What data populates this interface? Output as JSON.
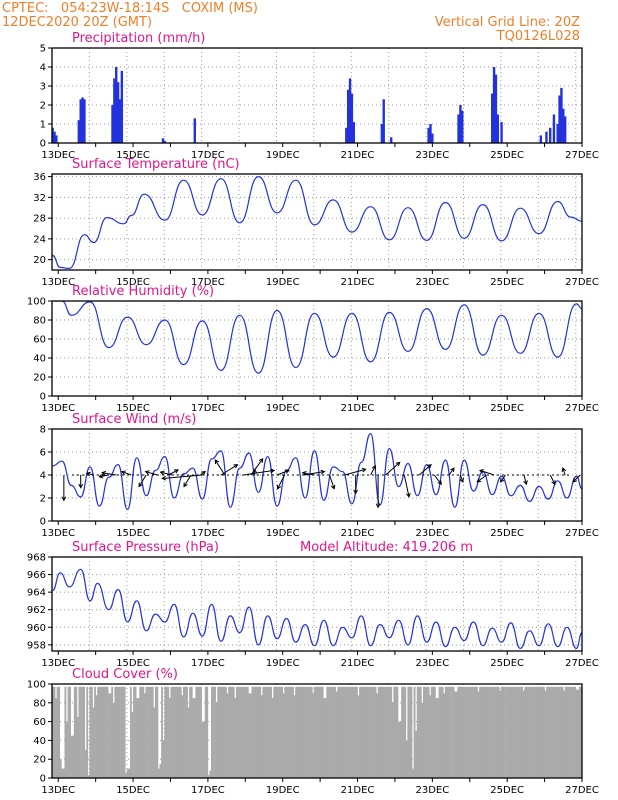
{
  "header": {
    "line1": "CPTEC:   054:23W-18:14S   COXIM (MS)",
    "line2": "12DEC2020 20Z (GMT)",
    "right1": "Vertical Grid Line: 20Z",
    "right2": "TQ0126L028"
  },
  "colors": {
    "header": "#ef7f2a",
    "title": "#e0168c",
    "line": "#2233dd",
    "bar": "#2233dd",
    "cloud": "#aaaaaa",
    "grid": "#9a9a9a"
  },
  "x_tick_labels": [
    "13DEC",
    "15DEC",
    "17DEC",
    "19DEC",
    "21DEC",
    "23DEC",
    "25DEC",
    "27DEC"
  ],
  "chart_data": [
    {
      "id": "precip",
      "type": "bar",
      "title": "Precipitation (mm/h)",
      "ylim": [
        0,
        5
      ],
      "yticks": [
        "0",
        "1",
        "2",
        "3",
        "4",
        "5"
      ],
      "x_range_days": [
        12.833,
        27.0
      ],
      "bars": [
        [
          12.85,
          0.8
        ],
        [
          12.9,
          0.6
        ],
        [
          12.95,
          0.4
        ],
        [
          13.55,
          1.2
        ],
        [
          13.6,
          2.3
        ],
        [
          13.65,
          2.4
        ],
        [
          13.7,
          2.3
        ],
        [
          14.45,
          2.0
        ],
        [
          14.5,
          3.4
        ],
        [
          14.55,
          4.0
        ],
        [
          14.6,
          3.2
        ],
        [
          14.65,
          2.3
        ],
        [
          14.7,
          3.8
        ],
        [
          15.8,
          0.25
        ],
        [
          15.85,
          0.1
        ],
        [
          16.65,
          1.3
        ],
        [
          20.7,
          0.8
        ],
        [
          20.75,
          2.8
        ],
        [
          20.8,
          3.4
        ],
        [
          20.85,
          2.6
        ],
        [
          20.9,
          1.1
        ],
        [
          21.65,
          1.0
        ],
        [
          21.7,
          2.3
        ],
        [
          21.9,
          0.3
        ],
        [
          22.9,
          0.8
        ],
        [
          22.95,
          1.0
        ],
        [
          23.0,
          0.5
        ],
        [
          23.7,
          1.5
        ],
        [
          23.75,
          2.0
        ],
        [
          23.8,
          1.7
        ],
        [
          24.6,
          2.6
        ],
        [
          24.65,
          4.0
        ],
        [
          24.7,
          3.6
        ],
        [
          24.75,
          1.5
        ],
        [
          24.85,
          1.1
        ],
        [
          25.9,
          0.4
        ],
        [
          26.05,
          0.6
        ],
        [
          26.15,
          0.8
        ],
        [
          26.25,
          1.5
        ],
        [
          26.35,
          1.0
        ],
        [
          26.4,
          2.5
        ],
        [
          26.45,
          2.9
        ],
        [
          26.5,
          1.8
        ],
        [
          26.55,
          1.4
        ]
      ]
    },
    {
      "id": "temp",
      "type": "line",
      "title": "Surface Temperature (nC)",
      "ylim": [
        18,
        36.5
      ],
      "yticks": [
        "20",
        "24",
        "28",
        "32",
        "36"
      ],
      "x": [
        12.85,
        13.05,
        13.3,
        13.7,
        13.95,
        14.3,
        14.75,
        14.95,
        15.3,
        15.85,
        16.35,
        16.85,
        17.35,
        17.85,
        18.35,
        18.85,
        19.35,
        19.85,
        20.35,
        20.85,
        21.35,
        21.85,
        22.35,
        22.85,
        23.35,
        23.85,
        24.35,
        24.85,
        25.35,
        25.85,
        26.35,
        26.7,
        27.0
      ],
      "y": [
        20.8,
        18.5,
        18.3,
        24.8,
        23.3,
        28.1,
        26.9,
        28.5,
        32.6,
        27.6,
        35.3,
        28.6,
        35.6,
        27.1,
        36.0,
        29.0,
        35.3,
        26.7,
        31.5,
        25.3,
        30.2,
        23.8,
        30.0,
        23.7,
        31.0,
        24.1,
        30.6,
        23.6,
        29.9,
        25.0,
        31.2,
        28.2,
        27.4
      ]
    },
    {
      "id": "rh",
      "type": "line",
      "title": "Relative Humidity (%)",
      "ylim": [
        0,
        100
      ],
      "yticks": [
        "0",
        "20",
        "40",
        "60",
        "80",
        "100"
      ],
      "x": [
        12.85,
        13.1,
        13.35,
        13.85,
        14.35,
        14.85,
        15.35,
        15.85,
        16.35,
        16.85,
        17.35,
        17.85,
        18.35,
        18.85,
        19.35,
        19.85,
        20.35,
        20.85,
        21.35,
        21.85,
        22.35,
        22.85,
        23.35,
        23.85,
        24.35,
        24.85,
        25.35,
        25.85,
        26.35,
        26.85,
        27.0
      ],
      "y": [
        100,
        100,
        85,
        99,
        51,
        83,
        54,
        80,
        33,
        79,
        27,
        85,
        24,
        90,
        30,
        87,
        41,
        87,
        36,
        88,
        47,
        92,
        49,
        96,
        43,
        85,
        45,
        87,
        41,
        97,
        92
      ]
    },
    {
      "id": "wind",
      "type": "line",
      "title": "Surface Wind (m/s)",
      "ylim": [
        0,
        8
      ],
      "yticks": [
        "0",
        "2",
        "4",
        "6",
        "8"
      ],
      "x": [
        12.85,
        13.1,
        13.35,
        13.6,
        13.85,
        14.1,
        14.35,
        14.6,
        14.85,
        15.1,
        15.35,
        15.6,
        15.85,
        16.1,
        16.35,
        16.6,
        16.85,
        17.1,
        17.35,
        17.6,
        17.85,
        18.1,
        18.35,
        18.6,
        18.85,
        19.1,
        19.35,
        19.6,
        19.85,
        20.1,
        20.35,
        20.6,
        20.85,
        21.1,
        21.35,
        21.6,
        21.85,
        22.1,
        22.35,
        22.6,
        22.85,
        23.1,
        23.35,
        23.6,
        23.85,
        24.1,
        24.35,
        24.6,
        24.85,
        25.1,
        25.35,
        25.6,
        25.85,
        26.1,
        26.35,
        26.6,
        26.85,
        27.0
      ],
      "y": [
        4.8,
        5.2,
        3.1,
        2.1,
        4.7,
        1.3,
        3.8,
        4.9,
        1.0,
        5.5,
        2.2,
        4.4,
        5.6,
        2.0,
        4.1,
        4.6,
        1.9,
        5.4,
        6.1,
        1.2,
        4.6,
        5.9,
        2.5,
        5.6,
        1.3,
        4.4,
        5.5,
        2.0,
        6.1,
        1.8,
        4.7,
        4.3,
        1.5,
        5.1,
        7.6,
        1.4,
        6.3,
        3.0,
        5.0,
        2.2,
        4.9,
        2.3,
        5.3,
        1.2,
        5.3,
        2.6,
        4.3,
        2.3,
        3.9,
        2.2,
        3.1,
        1.7,
        3.0,
        1.9,
        3.5,
        2.0,
        3.9,
        2.8
      ],
      "vector_baseline": 4,
      "vectors": [
        [
          13.15,
          0,
          -2.2
        ],
        [
          13.6,
          0,
          -1.1
        ],
        [
          13.95,
          -0.3,
          0.15
        ],
        [
          14.35,
          -0.4,
          -0.15
        ],
        [
          14.55,
          -0.6,
          0.2
        ],
        [
          14.95,
          -0.4,
          0.3
        ],
        [
          15.35,
          -0.3,
          -1.0
        ],
        [
          15.65,
          -0.5,
          0.3
        ],
        [
          15.95,
          0.4,
          0.45
        ],
        [
          16.05,
          -0.5,
          0.25
        ],
        [
          16.55,
          -0.3,
          -1.0
        ],
        [
          16.8,
          0.2,
          0.3
        ],
        [
          16.85,
          -1.7,
          -0.3
        ],
        [
          17.35,
          0.7,
          0.9
        ],
        [
          17.45,
          -0.4,
          1.3
        ],
        [
          17.95,
          1.3,
          0.4
        ],
        [
          18.15,
          0.5,
          1.4
        ],
        [
          18.25,
          0.0,
          0.5
        ],
        [
          18.85,
          0.5,
          0.4
        ],
        [
          19.05,
          -0.3,
          -1.2
        ],
        [
          19.55,
          0.9,
          0.3
        ],
        [
          19.85,
          -0.5,
          0.2
        ],
        [
          20.25,
          0.2,
          -1.2
        ],
        [
          20.65,
          0.9,
          0.5
        ],
        [
          20.95,
          0.0,
          -1.6
        ],
        [
          21.35,
          0.2,
          0.8
        ],
        [
          21.55,
          0.0,
          -2.8
        ],
        [
          21.75,
          0.6,
          1.1
        ],
        [
          22.25,
          0.2,
          -1.9
        ],
        [
          22.65,
          0.5,
          0.9
        ],
        [
          23.05,
          0.3,
          -0.8
        ],
        [
          23.45,
          0.2,
          0.6
        ],
        [
          23.75,
          0.1,
          -0.6
        ],
        [
          24.45,
          -0.4,
          -0.6
        ],
        [
          24.65,
          -0.6,
          0.4
        ],
        [
          24.95,
          -0.2,
          -0.6
        ],
        [
          25.45,
          0.1,
          -0.8
        ],
        [
          26.15,
          0.2,
          -0.8
        ],
        [
          26.55,
          -0.1,
          0.6
        ],
        [
          26.95,
          -0.3,
          -0.6
        ]
      ]
    },
    {
      "id": "pressure",
      "type": "line",
      "title": "Surface Pressure (hPa)",
      "annotation": "Model Altitude: 419.206 m",
      "ylim": [
        957.3,
        968
      ],
      "yticks": [
        "958",
        "960",
        "962",
        "964",
        "966",
        "968"
      ],
      "x": [
        12.85,
        13.05,
        13.3,
        13.6,
        13.85,
        14.05,
        14.35,
        14.6,
        14.85,
        15.1,
        15.35,
        15.6,
        15.85,
        16.1,
        16.35,
        16.6,
        16.85,
        17.1,
        17.35,
        17.6,
        17.85,
        18.1,
        18.35,
        18.6,
        18.85,
        19.1,
        19.35,
        19.6,
        19.85,
        20.1,
        20.35,
        20.6,
        20.85,
        21.1,
        21.35,
        21.6,
        21.85,
        22.1,
        22.35,
        22.6,
        22.85,
        23.1,
        23.35,
        23.6,
        23.85,
        24.1,
        24.35,
        24.6,
        24.85,
        25.1,
        25.35,
        25.6,
        25.85,
        26.1,
        26.35,
        26.6,
        26.85,
        27.0
      ],
      "y": [
        964.2,
        966.2,
        964.6,
        966.6,
        963.0,
        965.0,
        962.0,
        964.3,
        960.6,
        963.0,
        959.6,
        961.5,
        960.6,
        962.6,
        958.9,
        961.6,
        959.0,
        962.6,
        958.4,
        961.3,
        959.4,
        962.3,
        958.0,
        961.3,
        958.7,
        961.0,
        958.3,
        960.3,
        957.9,
        960.8,
        957.9,
        960.0,
        958.8,
        961.3,
        957.9,
        960.3,
        958.8,
        960.8,
        958.0,
        961.3,
        958.3,
        960.6,
        957.8,
        960.0,
        958.5,
        960.6,
        957.9,
        959.9,
        958.3,
        960.5,
        957.6,
        959.6,
        957.9,
        960.4,
        957.8,
        960.0,
        957.6,
        959.4
      ]
    },
    {
      "id": "cloud",
      "type": "bar",
      "title": "Cloud Cover (%)",
      "ylim": [
        0,
        100
      ],
      "yticks": [
        "0",
        "20",
        "40",
        "60",
        "80",
        "100"
      ],
      "base_level": 97,
      "dips": [
        [
          12.9,
          85
        ],
        [
          13.05,
          20
        ],
        [
          13.1,
          10
        ],
        [
          13.2,
          60
        ],
        [
          13.35,
          45
        ],
        [
          13.5,
          65
        ],
        [
          13.7,
          30
        ],
        [
          13.8,
          3
        ],
        [
          13.9,
          75
        ],
        [
          14.0,
          88
        ],
        [
          14.35,
          90
        ],
        [
          14.45,
          80
        ],
        [
          14.8,
          5
        ],
        [
          14.85,
          10
        ],
        [
          14.95,
          70
        ],
        [
          15.1,
          85
        ],
        [
          15.3,
          90
        ],
        [
          15.55,
          75
        ],
        [
          15.65,
          10
        ],
        [
          15.7,
          15
        ],
        [
          15.8,
          40
        ],
        [
          15.95,
          85
        ],
        [
          16.3,
          88
        ],
        [
          16.45,
          75
        ],
        [
          16.6,
          85
        ],
        [
          16.85,
          60
        ],
        [
          17.0,
          3
        ],
        [
          17.05,
          8
        ],
        [
          17.2,
          80
        ],
        [
          17.5,
          90
        ],
        [
          17.7,
          85
        ],
        [
          18.1,
          90
        ],
        [
          18.4,
          88
        ],
        [
          18.7,
          85
        ],
        [
          19.0,
          90
        ],
        [
          19.3,
          88
        ],
        [
          19.8,
          90
        ],
        [
          20.1,
          85
        ],
        [
          20.4,
          92
        ],
        [
          21.0,
          88
        ],
        [
          21.5,
          90
        ],
        [
          21.9,
          80
        ],
        [
          22.1,
          60
        ],
        [
          22.3,
          40
        ],
        [
          22.45,
          10
        ],
        [
          22.55,
          50
        ],
        [
          22.7,
          80
        ],
        [
          22.9,
          88
        ],
        [
          23.1,
          85
        ],
        [
          23.3,
          90
        ],
        [
          23.6,
          92
        ],
        [
          24.2,
          92
        ],
        [
          24.8,
          93
        ],
        [
          25.4,
          93
        ],
        [
          26.0,
          93
        ],
        [
          26.5,
          93
        ],
        [
          26.85,
          94
        ]
      ]
    }
  ]
}
